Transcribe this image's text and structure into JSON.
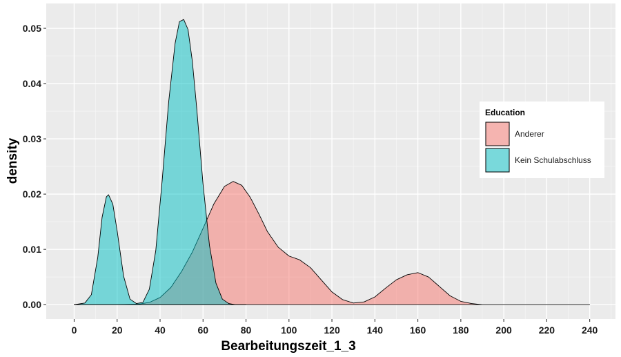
{
  "chart_data": {
    "type": "area",
    "xlabel": "Bearbeitungszeit_1_3",
    "ylabel": "density",
    "xlim": [
      -13,
      252
    ],
    "ylim": [
      -0.0026,
      0.0545
    ],
    "x_ticks": [
      0,
      20,
      40,
      60,
      80,
      100,
      120,
      140,
      160,
      180,
      200,
      220,
      240
    ],
    "x_tick_labels": [
      "0",
      "20",
      "40",
      "60",
      "80",
      "100",
      "120",
      "140",
      "160",
      "180",
      "200",
      "220",
      "240"
    ],
    "y_ticks": [
      0,
      0.01,
      0.02,
      0.03,
      0.04,
      0.05
    ],
    "y_tick_labels": [
      "0.00",
      "0.01",
      "0.02",
      "0.03",
      "0.04",
      "0.05"
    ],
    "grid": true,
    "legend": {
      "title": "Education",
      "position": "right"
    },
    "series": [
      {
        "name": "Anderer",
        "color": "#F8766D",
        "x": [
          0,
          10,
          20,
          30,
          35,
          40,
          45,
          50,
          55,
          60,
          65,
          70,
          74,
          78,
          82,
          86,
          90,
          95,
          100,
          105,
          110,
          115,
          120,
          125,
          130,
          135,
          140,
          145,
          150,
          155,
          160,
          165,
          170,
          175,
          180,
          185,
          190,
          200,
          220,
          240
        ],
        "y": [
          0,
          0,
          0,
          0.0001,
          0.0004,
          0.0013,
          0.0031,
          0.006,
          0.0095,
          0.0138,
          0.0182,
          0.0214,
          0.0223,
          0.0216,
          0.0194,
          0.0164,
          0.0132,
          0.0104,
          0.0088,
          0.0081,
          0.0067,
          0.0045,
          0.0023,
          0.0009,
          0.0003,
          0.0005,
          0.0014,
          0.003,
          0.0045,
          0.0054,
          0.0058,
          0.005,
          0.0033,
          0.0016,
          0.0006,
          0.0002,
          0,
          0,
          0,
          0
        ]
      },
      {
        "name": "Kein Schulabschluss",
        "color": "#00BFC4",
        "x": [
          0,
          5,
          8,
          11,
          13,
          15,
          16,
          18,
          20,
          23,
          26,
          29,
          32,
          35,
          38,
          41,
          44,
          47,
          49,
          51,
          53,
          55,
          57,
          60,
          63,
          66,
          69,
          72,
          75,
          78,
          80
        ],
        "y": [
          0,
          0.0003,
          0.0018,
          0.0086,
          0.0158,
          0.0195,
          0.0199,
          0.0182,
          0.0134,
          0.0052,
          0.001,
          0.0002,
          0.0004,
          0.0028,
          0.0098,
          0.0226,
          0.0367,
          0.0473,
          0.0512,
          0.0516,
          0.0498,
          0.0441,
          0.0358,
          0.0218,
          0.0107,
          0.0039,
          0.001,
          0.0002,
          0,
          0,
          0
        ]
      }
    ]
  }
}
